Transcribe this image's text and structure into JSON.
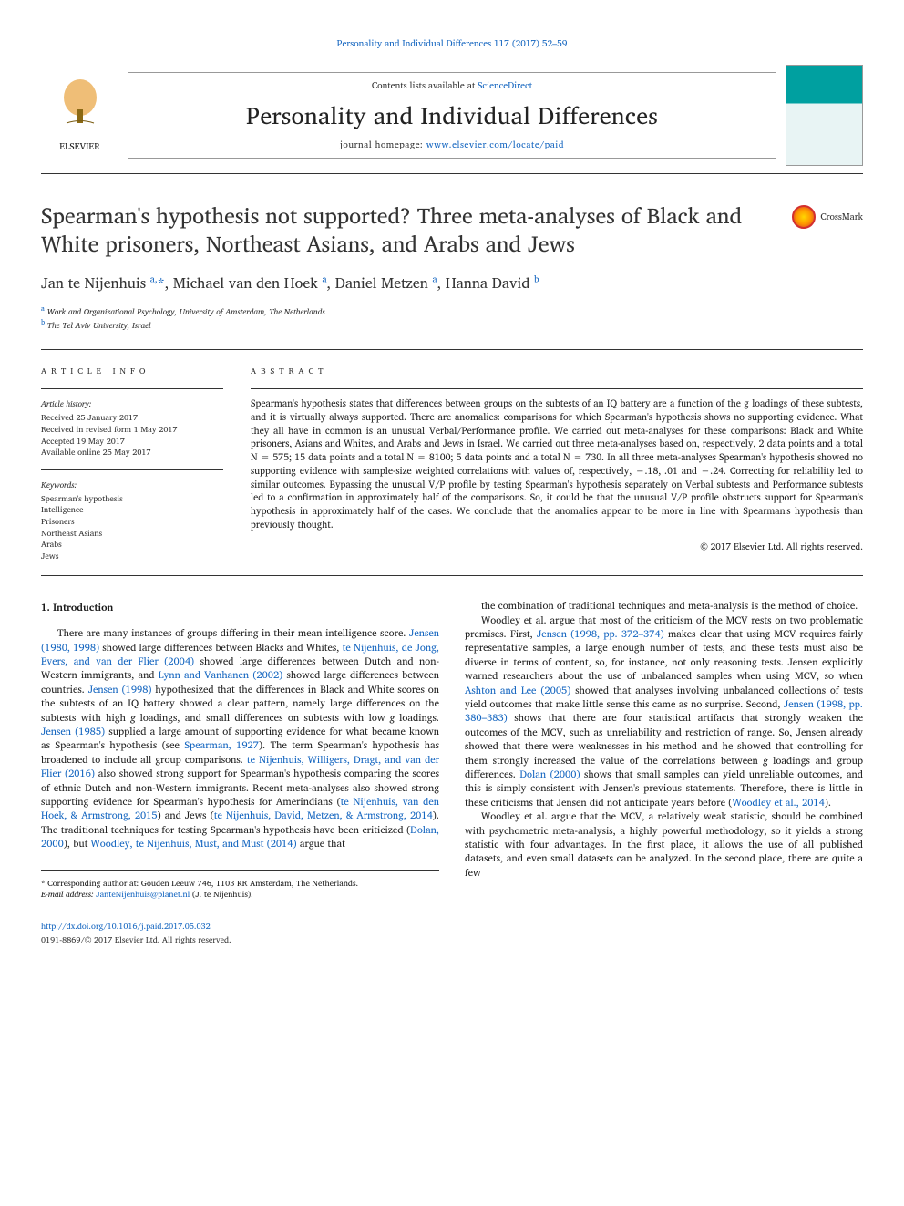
{
  "top_citation": "Personality and Individual Differences 117 (2017) 52–59",
  "masthead": {
    "contents_available": "Contents lists available at ",
    "contents_link": "ScienceDirect",
    "journal_name": "Personality and Individual Differences",
    "homepage_label": "journal homepage: ",
    "homepage_url": "www.elsevier.com/locate/paid",
    "elsevier": "ELSEVIER"
  },
  "title": "Spearman's hypothesis not supported? Three meta-analyses of Black and White prisoners, Northeast Asians, and Arabs and Jews",
  "crossmark": "CrossMark",
  "authors_html": "Jan te Nijenhuis <sup>a,</sup><span class='ast'>*</span>, Michael van den Hoek <sup>a</sup>, Daniel Metzen <sup>a</sup>, Hanna David <sup>b</sup>",
  "affiliations": [
    {
      "sup": "a",
      "text": "Work and Organizational Psychology, University of Amsterdam, The Netherlands"
    },
    {
      "sup": "b",
      "text": "The Tel Aviv University, Israel"
    }
  ],
  "article_info": {
    "heading": "article info",
    "history_label": "Article history:",
    "history": [
      "Received 25 January 2017",
      "Received in revised form 1 May 2017",
      "Accepted 19 May 2017",
      "Available online 25 May 2017"
    ],
    "keywords_label": "Keywords:",
    "keywords": [
      "Spearman's hypothesis",
      "Intelligence",
      "Prisoners",
      "Northeast Asians",
      "Arabs",
      "Jews"
    ]
  },
  "abstract": {
    "heading": "abstract",
    "text": "Spearman's hypothesis states that differences between groups on the subtests of an IQ battery are a function of the g loadings of these subtests, and it is virtually always supported. There are anomalies: comparisons for which Spearman's hypothesis shows no supporting evidence. What they all have in common is an unusual Verbal/Performance profile. We carried out meta-analyses for these comparisons: Black and White prisoners, Asians and Whites, and Arabs and Jews in Israel. We carried out three meta-analyses based on, respectively, 2 data points and a total N = 575; 15 data points and a total N = 8100; 5 data points and a total N = 730. In all three meta-analyses Spearman's hypothesis showed no supporting evidence with sample-size weighted correlations with values of, respectively, −.18, .01 and −.24. Correcting for reliability led to similar outcomes. Bypassing the unusual V/P profile by testing Spearman's hypothesis separately on Verbal subtests and Performance subtests led to a confirmation in approximately half of the comparisons. So, it could be that the unusual V/P profile obstructs support for Spearman's hypothesis in approximately half of the cases. We conclude that the anomalies appear to be more in line with Spearman's hypothesis than previously thought.",
    "copyright": "© 2017 Elsevier Ltd. All rights reserved."
  },
  "section_heading": "1. Introduction",
  "body": {
    "left": [
      "There are many instances of groups differing in their mean intelligence score. <span class='ref'>Jensen (1980, 1998)</span> showed large differences between Blacks and Whites, <span class='ref'>te Nijenhuis, de Jong, Evers, and van der Flier (2004)</span> showed large differences between Dutch and non-Western immigrants, and <span class='ref'>Lynn and Vanhanen (2002)</span> showed large differences between countries. <span class='ref'>Jensen (1998)</span> hypothesized that the differences in Black and White scores on the subtests of an IQ battery showed a clear pattern, namely large differences on the subtests with high <span class='ital'>g</span> loadings, and small differences on subtests with low <span class='ital'>g</span> loadings. <span class='ref'>Jensen (1985)</span> supplied a large amount of supporting evidence for what became known as Spearman's hypothesis (see <span class='ref'>Spearman, 1927</span>). The term Spearman's hypothesis has broadened to include all group comparisons. <span class='ref'>te Nijenhuis, Willigers, Dragt, and van der Flier (2016)</span> also showed strong support for Spearman's hypothesis comparing the scores of ethnic Dutch and non-Western immigrants. Recent meta-analyses also showed strong supporting evidence for Spearman's hypothesis for Amerindians (<span class='ref'>te Nijenhuis, van den Hoek, & Armstrong, 2015</span>) and Jews (<span class='ref'>te Nijenhuis, David, Metzen, & Armstrong, 2014</span>). The traditional techniques for testing Spearman's hypothesis have been criticized (<span class='ref'>Dolan, 2000</span>), but <span class='ref'>Woodley, te Nijenhuis, Must, and Must (2014)</span> argue that"
    ],
    "right": [
      "the combination of traditional techniques and meta-analysis is the method of choice.",
      "Woodley et al. argue that most of the criticism of the MCV rests on two problematic premises. First, <span class='ref'>Jensen (1998, pp. 372–374)</span> makes clear that using MCV requires fairly representative samples, a large enough number of tests, and these tests must also be diverse in terms of content, so, for instance, not only reasoning tests. Jensen explicitly warned researchers about the use of unbalanced samples when using MCV, so when <span class='ref'>Ashton and Lee (2005)</span> showed that analyses involving unbalanced collections of tests yield outcomes that make little sense this came as no surprise. Second, <span class='ref'>Jensen (1998, pp. 380–383)</span> shows that there are four statistical artifacts that strongly weaken the outcomes of the MCV, such as unreliability and restriction of range. So, Jensen already showed that there were weaknesses in his method and he showed that controlling for them strongly increased the value of the correlations between <span class='ital'>g</span> loadings and group differences. <span class='ref'>Dolan (2000)</span> shows that small samples can yield unreliable outcomes, and this is simply consistent with Jensen's previous statements. Therefore, there is little in these criticisms that Jensen did not anticipate years before (<span class='ref'>Woodley et al., 2014</span>).",
      "Woodley et al. argue that the MCV, a relatively weak statistic, should be combined with psychometric meta-analysis, a highly powerful methodology, so it yields a strong statistic with four advantages. In the first place, it allows the use of all published datasets, and even small datasets can be analyzed. In the second place, there are quite a few"
    ]
  },
  "corresponding": {
    "marker": "*",
    "text": "Corresponding author at: Gouden Leeuw 746, 1103 KR Amsterdam, The Netherlands.",
    "email_label": "E-mail address:",
    "email": "JanteNijenhuis@planet.nl",
    "email_author": " (J. te Nijenhuis)."
  },
  "footer": {
    "doi": "http://dx.doi.org/10.1016/j.paid.2017.05.032",
    "issn": "0191-8869/© 2017 Elsevier Ltd. All rights reserved."
  },
  "colors": {
    "link": "#1566c0",
    "text": "#1a1a1a",
    "rule": "#333333"
  },
  "fonts": {
    "body_family": "Georgia, serif",
    "title_size_pt": 24,
    "journal_name_size_pt": 26,
    "body_size_pt": 11,
    "abstract_size_pt": 10.5,
    "info_size_pt": 9
  }
}
